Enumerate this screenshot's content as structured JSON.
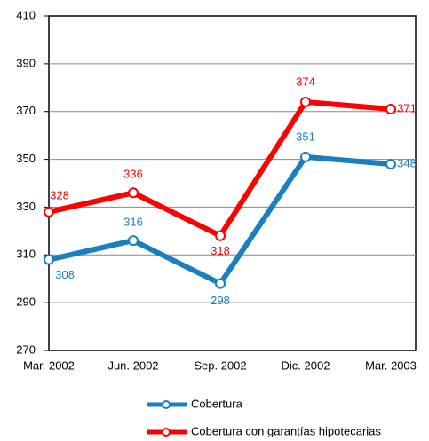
{
  "chart_data": {
    "type": "line",
    "categories": [
      "Mar. 2002",
      "Jun. 2002",
      "Sep. 2002",
      "Dic. 2002",
      "Mar. 2003"
    ],
    "series": [
      {
        "name": "Cobertura",
        "color": "#1a7fc1",
        "values": [
          308,
          316,
          298,
          351,
          348
        ]
      },
      {
        "name": "Cobertura con garantías hipotecarias",
        "color": "#ff0000",
        "values": [
          328,
          336,
          318,
          374,
          371
        ]
      }
    ],
    "ylim": [
      270,
      410
    ],
    "yticks": [
      270,
      290,
      310,
      330,
      350,
      370,
      390,
      410
    ],
    "grid": true,
    "legend": "bottom"
  }
}
